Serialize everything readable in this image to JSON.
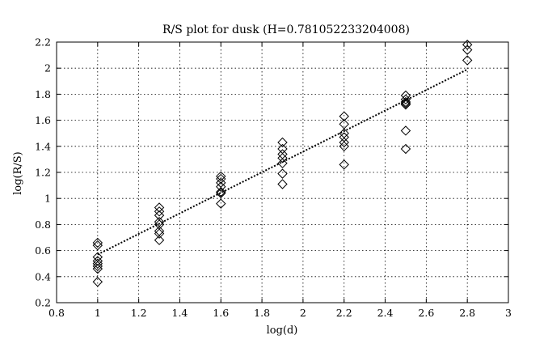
{
  "chart_data": {
    "type": "scatter",
    "title": "R/S plot for dusk (H=0.781052233204008)",
    "xlabel": "log(d)",
    "ylabel": "log(R/S)",
    "xlim": [
      0.8,
      3.0
    ],
    "ylim": [
      0.2,
      2.2
    ],
    "xticks": [
      "0.8",
      "1",
      "1.2",
      "1.4",
      "1.6",
      "1.8",
      "2",
      "2.2",
      "2.4",
      "2.6",
      "2.8",
      "3"
    ],
    "yticks": [
      "0.2",
      "0.4",
      "0.6",
      "0.8",
      "1",
      "1.2",
      "1.4",
      "1.6",
      "1.8",
      "2",
      "2.2"
    ],
    "grid": true,
    "marker": "diamond",
    "series": [
      {
        "points": [
          [
            1.0,
            0.66
          ],
          [
            1.0,
            0.64
          ],
          [
            1.0,
            0.55
          ],
          [
            1.0,
            0.52
          ],
          [
            1.0,
            0.5
          ],
          [
            1.0,
            0.48
          ],
          [
            1.0,
            0.46
          ],
          [
            1.0,
            0.36
          ],
          [
            1.3,
            0.93
          ],
          [
            1.3,
            0.9
          ],
          [
            1.3,
            0.87
          ],
          [
            1.3,
            0.82
          ],
          [
            1.3,
            0.8
          ],
          [
            1.3,
            0.75
          ],
          [
            1.3,
            0.73
          ],
          [
            1.3,
            0.68
          ],
          [
            1.6,
            1.17
          ],
          [
            1.6,
            1.15
          ],
          [
            1.6,
            1.12
          ],
          [
            1.6,
            1.09
          ],
          [
            1.6,
            1.05
          ],
          [
            1.6,
            1.04
          ],
          [
            1.6,
            0.96
          ],
          [
            1.9,
            1.43
          ],
          [
            1.9,
            1.38
          ],
          [
            1.9,
            1.34
          ],
          [
            1.9,
            1.31
          ],
          [
            1.9,
            1.27
          ],
          [
            1.9,
            1.19
          ],
          [
            1.9,
            1.11
          ],
          [
            2.2,
            1.63
          ],
          [
            2.2,
            1.57
          ],
          [
            2.2,
            1.5
          ],
          [
            2.2,
            1.47
          ],
          [
            2.2,
            1.43
          ],
          [
            2.2,
            1.4
          ],
          [
            2.2,
            1.26
          ],
          [
            2.5,
            1.79
          ],
          [
            2.5,
            1.76
          ],
          [
            2.5,
            1.74
          ],
          [
            2.5,
            1.73
          ],
          [
            2.5,
            1.72
          ],
          [
            2.5,
            1.52
          ],
          [
            2.5,
            1.38
          ],
          [
            2.8,
            2.18
          ],
          [
            2.8,
            2.14
          ],
          [
            2.8,
            2.06
          ]
        ]
      }
    ],
    "fit_line": {
      "x": [
        1.0,
        2.8
      ],
      "y": [
        0.57,
        1.99
      ],
      "style": "dotted"
    }
  }
}
